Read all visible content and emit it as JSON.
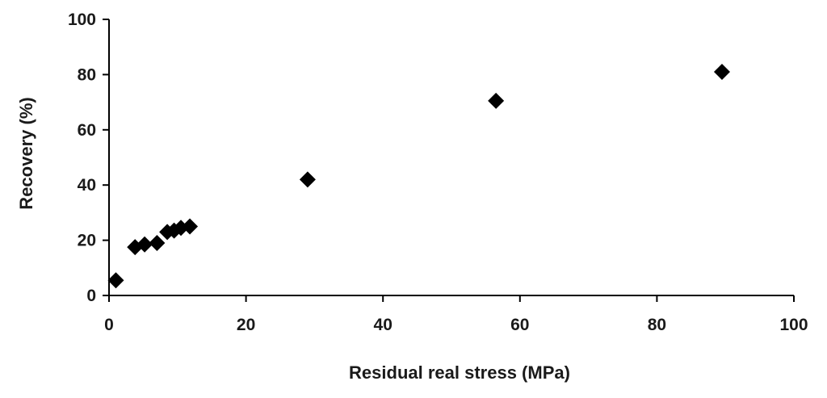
{
  "chart_data": {
    "type": "scatter",
    "title": "",
    "xlabel": "Residual real stress (MPa)",
    "ylabel": "Recovery (%)",
    "xlim": [
      0,
      100
    ],
    "ylim": [
      0,
      100
    ],
    "x_ticks": [
      "0",
      "20",
      "40",
      "60",
      "80",
      "100"
    ],
    "y_ticks": [
      "0",
      "20",
      "40",
      "60",
      "80",
      "100"
    ],
    "grid": false,
    "legend": "none",
    "marker": "diamond",
    "marker_color": "#000000",
    "series": [
      {
        "points": [
          {
            "x": 1.0,
            "y": 5.5
          },
          {
            "x": 3.8,
            "y": 17.5
          },
          {
            "x": 5.2,
            "y": 18.5
          },
          {
            "x": 7.0,
            "y": 19.0
          },
          {
            "x": 8.5,
            "y": 23.0
          },
          {
            "x": 9.5,
            "y": 23.5
          },
          {
            "x": 10.5,
            "y": 24.5
          },
          {
            "x": 11.8,
            "y": 25.0
          },
          {
            "x": 29.0,
            "y": 42.0
          },
          {
            "x": 56.5,
            "y": 70.5
          },
          {
            "x": 89.5,
            "y": 81.0
          }
        ]
      }
    ]
  }
}
